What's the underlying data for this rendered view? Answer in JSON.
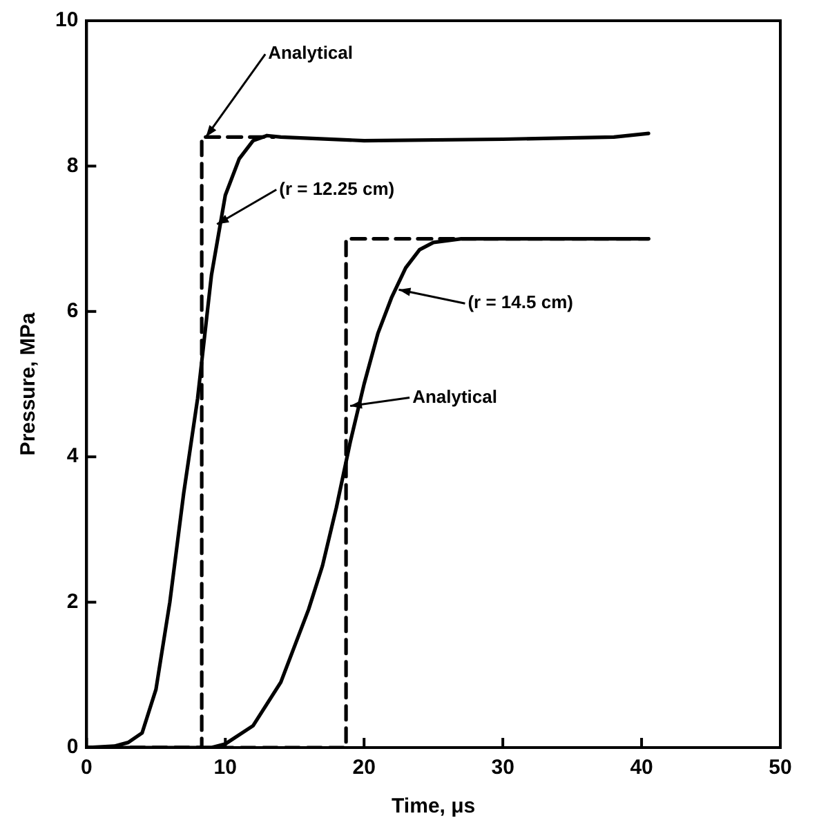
{
  "chart_data": {
    "type": "line",
    "xlabel": "Time, μs",
    "ylabel": "Pressure, MPa",
    "xlim": [
      0,
      50
    ],
    "ylim": [
      0,
      10
    ],
    "xticks": [
      0,
      10,
      20,
      30,
      40,
      50
    ],
    "yticks": [
      0,
      2,
      4,
      6,
      8,
      10
    ],
    "grid": false,
    "legend": false,
    "marker": "none",
    "series": [
      {
        "color": "#000000",
        "line_style": "dashed",
        "x": [
          0,
          8.3,
          8.3,
          13.5
        ],
        "values": [
          0,
          0,
          8.4,
          8.4
        ]
      },
      {
        "color": "#000000",
        "line_style": "solid",
        "x": [
          0,
          2,
          3,
          4,
          5,
          6,
          7,
          8,
          9,
          10,
          11,
          12,
          13,
          14,
          20,
          30,
          38,
          40.5
        ],
        "values": [
          0,
          0.02,
          0.07,
          0.2,
          0.8,
          2,
          3.5,
          4.8,
          6.5,
          7.6,
          8.1,
          8.35,
          8.42,
          8.4,
          8.35,
          8.37,
          8.4,
          8.45
        ]
      },
      {
        "color": "#000000",
        "line_style": "dashed",
        "x": [
          0,
          18.7,
          18.7,
          40.5
        ],
        "values": [
          0,
          0,
          7,
          7
        ]
      },
      {
        "color": "#000000",
        "line_style": "solid",
        "x": [
          0,
          9,
          10,
          12,
          14,
          16,
          17,
          18,
          19,
          20,
          21,
          22,
          23,
          24,
          25,
          27,
          40.5
        ],
        "values": [
          0,
          0,
          0.05,
          0.3,
          0.9,
          1.9,
          2.5,
          3.3,
          4.2,
          5,
          5.7,
          6.2,
          6.6,
          6.85,
          6.95,
          7,
          7
        ]
      }
    ],
    "annotations": [
      {
        "text": "Analytical",
        "x": 8.6,
        "y": 8.4
      },
      {
        "text": "(r = 12.25 cm)",
        "x": 9.4,
        "y": 7.2
      },
      {
        "text": "(r = 14.5 cm)",
        "x": 22.5,
        "y": 6.3
      },
      {
        "text": "Analytical",
        "x": 19,
        "y": 4.7
      }
    ]
  }
}
